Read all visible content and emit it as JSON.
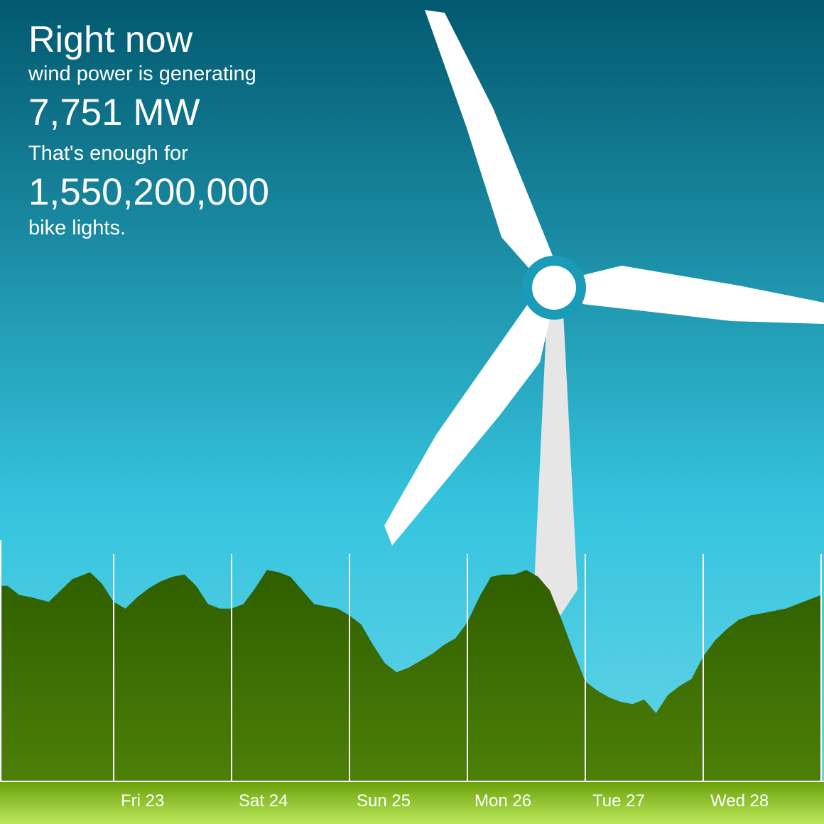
{
  "headline": {
    "title": "Right now",
    "line1": "wind power is generating",
    "power": "7,751 MW",
    "line2": "That's enough for",
    "equivalent_count": "1,550,200,000",
    "equivalent_unit": "bike lights."
  },
  "colors": {
    "sky_top": "#02596f",
    "sky_mid": "#35c4de",
    "sky_bottom": "#6dd7e8",
    "area_top": "#2f5e00",
    "area_bottom": "#4d7f08",
    "ground_top": "#6aa10c",
    "ground_bottom": "#bbe85a",
    "blade": "#ffffff",
    "tower": "#e6e6e6",
    "hub_ring": "#1a9bb8"
  },
  "chart_data": {
    "type": "area",
    "title": "",
    "xlabel": "",
    "ylabel": "",
    "grid": "vertical day separators",
    "x_tick_labels": [
      "Fri 23",
      "Sat 24",
      "Sun 25",
      "Mon 26",
      "Tue 27",
      "Wed 28"
    ],
    "xlim": [
      -0.95,
      6.0
    ],
    "ylim": [
      0,
      1
    ],
    "x": [
      -0.95,
      -0.9,
      -0.8,
      -0.7,
      -0.55,
      -0.45,
      -0.35,
      -0.2,
      -0.1,
      0.0,
      0.1,
      0.2,
      0.3,
      0.4,
      0.5,
      0.6,
      0.7,
      0.8,
      0.9,
      1.0,
      1.1,
      1.2,
      1.3,
      1.4,
      1.5,
      1.6,
      1.7,
      1.8,
      1.9,
      2.0,
      2.1,
      2.2,
      2.3,
      2.4,
      2.5,
      2.6,
      2.7,
      2.8,
      2.9,
      3.0,
      3.1,
      3.2,
      3.3,
      3.4,
      3.5,
      3.6,
      3.7,
      3.8,
      3.9,
      4.0,
      4.1,
      4.2,
      4.3,
      4.4,
      4.5,
      4.6,
      4.7,
      4.8,
      4.9,
      5.0,
      5.1,
      5.2,
      5.3,
      5.4,
      5.5,
      5.6,
      5.7,
      5.8,
      5.9,
      6.0
    ],
    "y": [
      0.86,
      0.86,
      0.82,
      0.81,
      0.79,
      0.84,
      0.89,
      0.92,
      0.87,
      0.79,
      0.76,
      0.81,
      0.85,
      0.88,
      0.9,
      0.91,
      0.86,
      0.78,
      0.76,
      0.76,
      0.78,
      0.85,
      0.93,
      0.92,
      0.9,
      0.84,
      0.78,
      0.77,
      0.76,
      0.73,
      0.69,
      0.6,
      0.52,
      0.48,
      0.5,
      0.53,
      0.56,
      0.6,
      0.63,
      0.7,
      0.81,
      0.9,
      0.91,
      0.91,
      0.93,
      0.9,
      0.84,
      0.71,
      0.57,
      0.44,
      0.4,
      0.37,
      0.35,
      0.34,
      0.36,
      0.3,
      0.38,
      0.42,
      0.45,
      0.55,
      0.62,
      0.67,
      0.71,
      0.73,
      0.74,
      0.75,
      0.76,
      0.78,
      0.8,
      0.82
    ]
  }
}
